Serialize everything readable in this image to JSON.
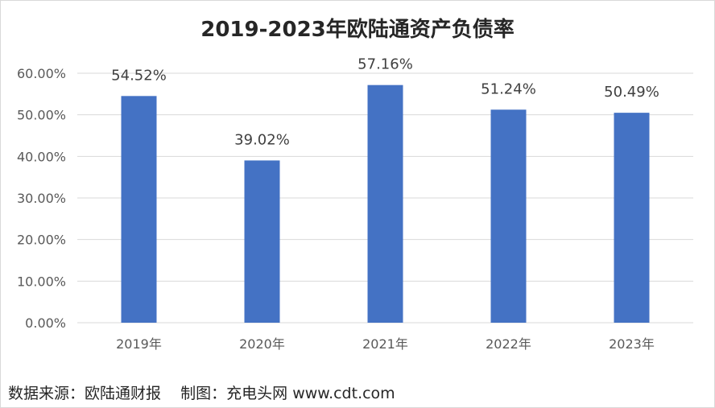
{
  "title": "2019-2023年欧陆通资产负债率",
  "source_text": "数据来源：欧陆通财报    制图：充电头网 www.cdt.com",
  "colors": {
    "bar": "#4472C4",
    "grid": "#d9d9d9"
  },
  "chart_data": {
    "type": "bar",
    "title": "2019-2023年欧陆通资产负债率",
    "categories": [
      "2019年",
      "2020年",
      "2021年",
      "2022年",
      "2023年"
    ],
    "values": [
      54.52,
      39.02,
      57.16,
      51.24,
      50.49
    ],
    "data_labels": [
      "54.52%",
      "39.02%",
      "57.16%",
      "51.24%",
      "50.49%"
    ],
    "y_ticks": [
      "0.00%",
      "10.00%",
      "20.00%",
      "30.00%",
      "40.00%",
      "50.00%",
      "60.00%"
    ],
    "ylim": [
      0,
      60
    ],
    "grid": true,
    "legend": "none"
  }
}
